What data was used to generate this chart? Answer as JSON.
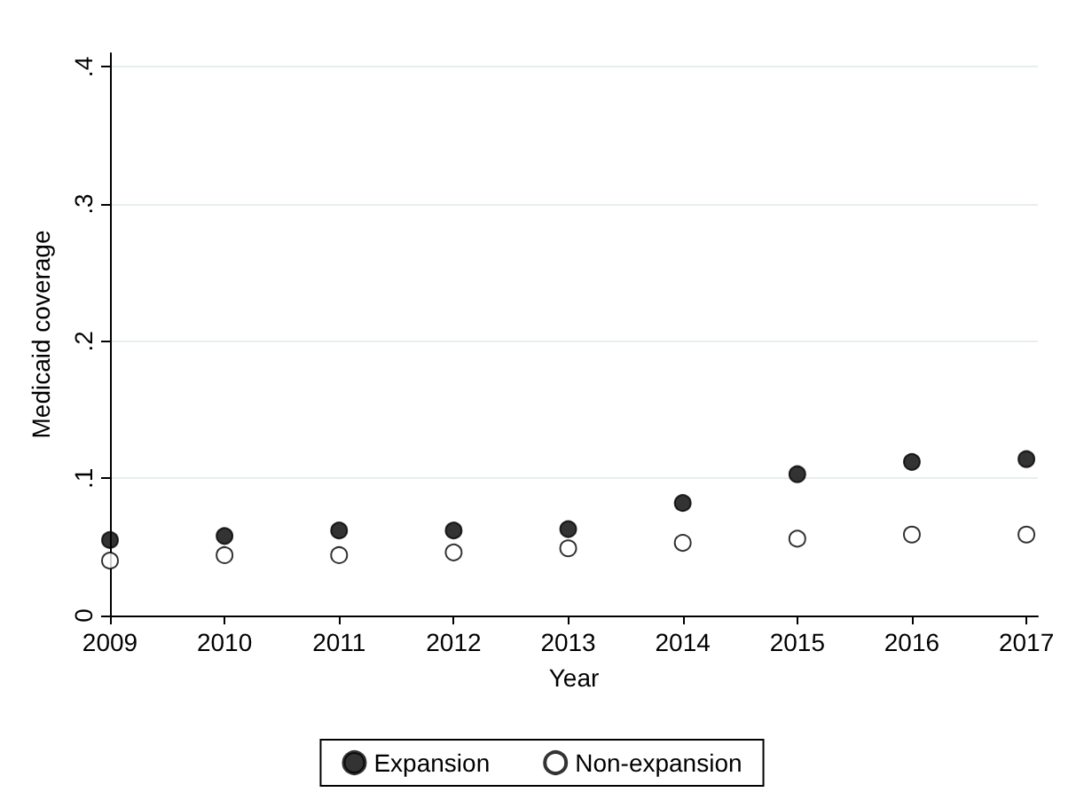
{
  "chart_data": {
    "type": "scatter",
    "xlabel": "Year",
    "ylabel": "Medicaid coverage",
    "x": [
      2009,
      2010,
      2011,
      2012,
      2013,
      2014,
      2015,
      2016,
      2017
    ],
    "series": [
      {
        "name": "Expansion",
        "color": "#000000",
        "values": [
          0.055,
          0.058,
          0.062,
          0.062,
          0.063,
          0.082,
          0.103,
          0.112,
          0.114
        ]
      },
      {
        "name": "Non-expansion",
        "color": "#ffffff",
        "values": [
          0.04,
          0.044,
          0.044,
          0.046,
          0.049,
          0.053,
          0.056,
          0.059,
          0.059
        ]
      }
    ],
    "xlim": [
      2009,
      2017.1
    ],
    "xticks": [
      2009,
      2010,
      2011,
      2012,
      2013,
      2014,
      2015,
      2016,
      2017
    ],
    "ylim": [
      0,
      0.41
    ],
    "yticks": [
      0,
      {
        "value": 0.1,
        "label": ".1"
      },
      {
        "value": 0.2,
        "label": ".2"
      },
      {
        "value": 0.3,
        "label": ".3"
      },
      {
        "value": 0.4,
        "label": ".4"
      }
    ],
    "grid": "y",
    "legend": "bottom",
    "marker": "circle"
  }
}
